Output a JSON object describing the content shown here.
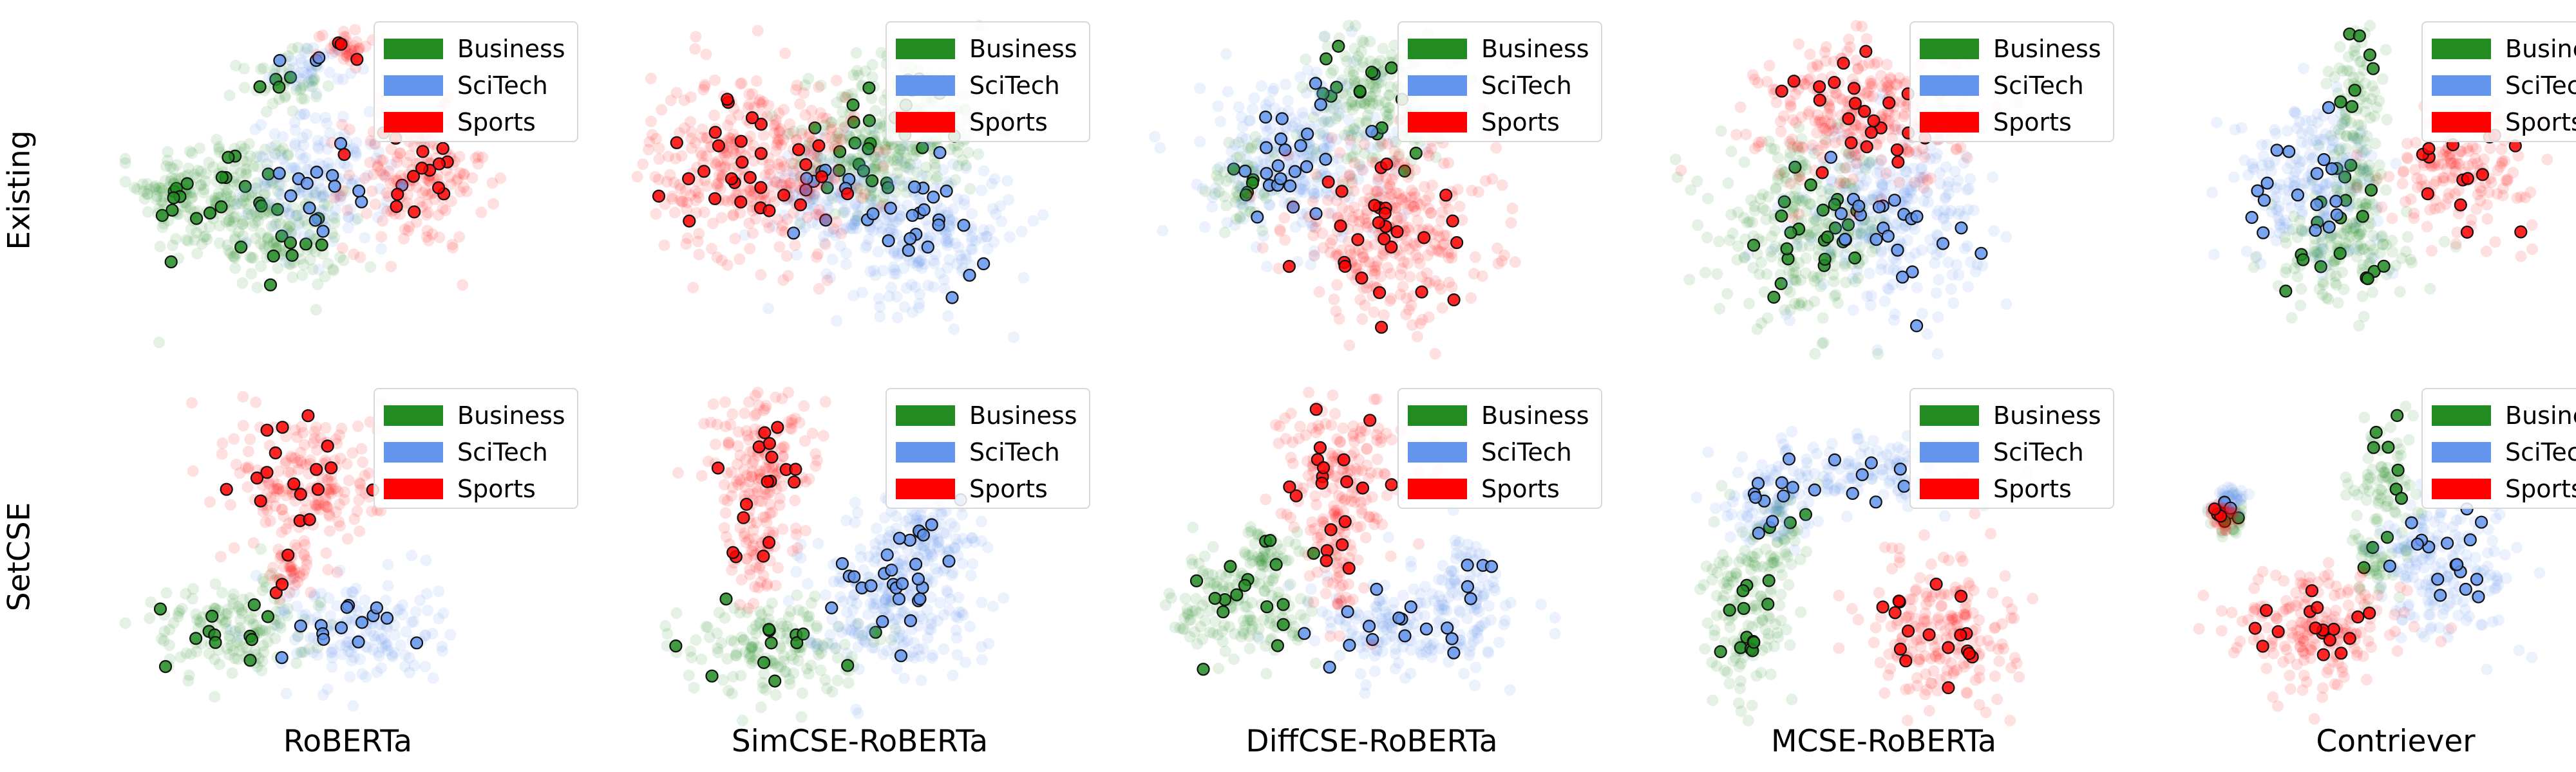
{
  "figure": {
    "row_labels": [
      "Existing",
      "SetCSE"
    ],
    "column_labels": [
      "RoBERTa",
      "SimCSE-RoBERTa",
      "DiffCSE-RoBERTa",
      "MCSE-RoBERTa",
      "Contriever"
    ]
  },
  "chart_data": [
    {
      "type": "scatter",
      "row": "Existing",
      "column": "RoBERTa",
      "legend": "upper-right",
      "series": [
        {
          "name": "Business",
          "color": "#228B22",
          "clusters": [
            [
              -0.55,
              -0.05,
              0.28,
              0.28
            ],
            [
              -0.25,
              0.65,
              0.14,
              0.12
            ],
            [
              -0.8,
              0.0,
              0.1,
              0.1
            ],
            [
              -0.2,
              -0.3,
              0.2,
              0.2
            ]
          ]
        },
        {
          "name": "SciTech",
          "color": "#6495ED",
          "clusters": [
            [
              -0.05,
              0.05,
              0.24,
              0.26
            ],
            [
              -0.08,
              0.75,
              0.12,
              0.1
            ]
          ]
        },
        {
          "name": "Sports",
          "color": "#FF0000",
          "clusters": [
            [
              0.45,
              0.05,
              0.24,
              0.28
            ],
            [
              0.08,
              0.88,
              0.09,
              0.07
            ]
          ]
        }
      ]
    },
    {
      "type": "scatter",
      "row": "Existing",
      "column": "SimCSE-RoBERTa",
      "legend": "upper-right",
      "series": [
        {
          "name": "Business",
          "color": "#228B22",
          "clusters": [
            [
              0.35,
              0.4,
              0.3,
              0.28
            ],
            [
              0.1,
              0.15,
              0.2,
              0.2
            ]
          ]
        },
        {
          "name": "SciTech",
          "color": "#6495ED",
          "clusters": [
            [
              0.4,
              -0.25,
              0.32,
              0.3
            ],
            [
              -0.05,
              0.0,
              0.2,
              0.2
            ]
          ]
        },
        {
          "name": "Sports",
          "color": "#FF0000",
          "clusters": [
            [
              -0.45,
              0.15,
              0.35,
              0.38
            ]
          ]
        }
      ]
    },
    {
      "type": "scatter",
      "row": "Existing",
      "column": "DiffCSE-RoBERTa",
      "legend": "upper-right",
      "series": [
        {
          "name": "Business",
          "color": "#228B22",
          "clusters": [
            [
              0.1,
              0.55,
              0.25,
              0.28
            ],
            [
              -0.55,
              0.05,
              0.12,
              0.2
            ]
          ]
        },
        {
          "name": "SciTech",
          "color": "#6495ED",
          "clusters": [
            [
              -0.3,
              0.2,
              0.3,
              0.35
            ]
          ]
        },
        {
          "name": "Sports",
          "color": "#FF0000",
          "clusters": [
            [
              0.2,
              -0.25,
              0.35,
              0.35
            ]
          ]
        }
      ]
    },
    {
      "type": "scatter",
      "row": "Existing",
      "column": "MCSE-RoBERTa",
      "legend": "upper-right",
      "series": [
        {
          "name": "Business",
          "color": "#228B22",
          "clusters": [
            [
              -0.3,
              -0.25,
              0.3,
              0.35
            ]
          ]
        },
        {
          "name": "SciTech",
          "color": "#6495ED",
          "clusters": [
            [
              0.15,
              -0.15,
              0.3,
              0.35
            ]
          ]
        },
        {
          "name": "Sports",
          "color": "#FF0000",
          "clusters": [
            [
              0.0,
              0.45,
              0.35,
              0.3
            ]
          ]
        }
      ]
    },
    {
      "type": "scatter",
      "row": "Existing",
      "column": "Contriever",
      "legend": "upper-right",
      "series": [
        {
          "name": "Business",
          "color": "#228B22",
          "clusters": [
            [
              -0.1,
              0.55,
              0.1,
              0.3
            ],
            [
              -0.2,
              -0.4,
              0.25,
              0.2
            ],
            [
              -0.1,
              0.0,
              0.1,
              0.3
            ]
          ]
        },
        {
          "name": "SciTech",
          "color": "#6495ED",
          "clusters": [
            [
              -0.35,
              0.05,
              0.25,
              0.3
            ]
          ]
        },
        {
          "name": "Sports",
          "color": "#FF0000",
          "clusters": [
            [
              0.45,
              0.15,
              0.25,
              0.25
            ]
          ]
        }
      ]
    },
    {
      "type": "scatter",
      "row": "SetCSE",
      "column": "RoBERTa",
      "legend": "upper-right",
      "series": [
        {
          "name": "Business",
          "color": "#228B22",
          "clusters": [
            [
              -0.5,
              -0.45,
              0.28,
              0.2
            ]
          ]
        },
        {
          "name": "SciTech",
          "color": "#6495ED",
          "clusters": [
            [
              0.15,
              -0.45,
              0.28,
              0.22
            ]
          ]
        },
        {
          "name": "Sports",
          "color": "#FF0000",
          "clusters": [
            [
              -0.1,
              0.45,
              0.25,
              0.3
            ],
            [
              -0.2,
              -0.05,
              0.08,
              0.15
            ]
          ]
        }
      ]
    },
    {
      "type": "scatter",
      "row": "SetCSE",
      "column": "SimCSE-RoBERTa",
      "legend": "upper-right",
      "series": [
        {
          "name": "Business",
          "color": "#228B22",
          "clusters": [
            [
              -0.35,
              -0.55,
              0.3,
              0.2
            ]
          ]
        },
        {
          "name": "SciTech",
          "color": "#6495ED",
          "clusters": [
            [
              0.25,
              -0.25,
              0.3,
              0.3
            ],
            [
              0.45,
              0.15,
              0.2,
              0.2
            ]
          ]
        },
        {
          "name": "Sports",
          "color": "#FF0000",
          "clusters": [
            [
              -0.4,
              0.55,
              0.2,
              0.3
            ],
            [
              -0.45,
              0.0,
              0.1,
              0.2
            ]
          ]
        }
      ]
    },
    {
      "type": "scatter",
      "row": "SetCSE",
      "column": "DiffCSE-RoBERTa",
      "legend": "upper-right",
      "series": [
        {
          "name": "Business",
          "color": "#228B22",
          "clusters": [
            [
              -0.55,
              -0.3,
              0.25,
              0.25
            ],
            [
              -0.45,
              0.05,
              0.1,
              0.1
            ]
          ]
        },
        {
          "name": "SciTech",
          "color": "#6495ED",
          "clusters": [
            [
              0.3,
              -0.45,
              0.35,
              0.2
            ],
            [
              0.6,
              -0.15,
              0.12,
              0.2
            ]
          ]
        },
        {
          "name": "Sports",
          "color": "#FF0000",
          "clusters": [
            [
              -0.05,
              0.55,
              0.2,
              0.3
            ],
            [
              -0.1,
              0.0,
              0.1,
              0.25
            ]
          ]
        }
      ]
    },
    {
      "type": "scatter",
      "row": "SetCSE",
      "column": "MCSE-RoBERTa",
      "legend": "upper-right",
      "series": [
        {
          "name": "Business",
          "color": "#228B22",
          "clusters": [
            [
              -0.6,
              -0.4,
              0.15,
              0.35
            ],
            [
              -0.45,
              0.15,
              0.1,
              0.2
            ]
          ]
        },
        {
          "name": "SciTech",
          "color": "#6495ED",
          "clusters": [
            [
              0.0,
              0.5,
              0.35,
              0.15
            ],
            [
              -0.5,
              0.35,
              0.15,
              0.2
            ]
          ]
        },
        {
          "name": "Sports",
          "color": "#FF0000",
          "clusters": [
            [
              0.4,
              -0.45,
              0.25,
              0.3
            ]
          ]
        }
      ]
    },
    {
      "type": "scatter",
      "row": "SetCSE",
      "column": "Contriever",
      "legend": "upper-right",
      "series": [
        {
          "name": "Business",
          "color": "#228B22",
          "clusters": [
            [
              0.05,
              0.45,
              0.12,
              0.25
            ],
            [
              -0.75,
              0.25,
              0.06,
              0.08
            ],
            [
              0.0,
              -0.05,
              0.1,
              0.15
            ]
          ]
        },
        {
          "name": "SciTech",
          "color": "#6495ED",
          "clusters": [
            [
              0.35,
              -0.05,
              0.25,
              0.3
            ],
            [
              -0.75,
              0.35,
              0.05,
              0.05
            ]
          ]
        },
        {
          "name": "Sports",
          "color": "#FF0000",
          "clusters": [
            [
              -0.3,
              -0.45,
              0.3,
              0.25
            ],
            [
              -0.8,
              0.25,
              0.05,
              0.05
            ]
          ]
        }
      ]
    }
  ]
}
